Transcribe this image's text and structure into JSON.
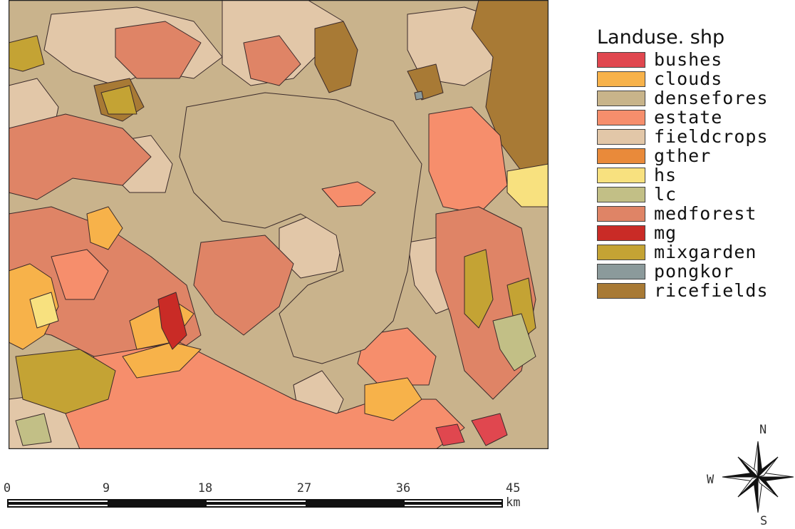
{
  "legend": {
    "title": "Landuse. shp",
    "items": [
      {
        "label": "bushes",
        "color": "#e0474f"
      },
      {
        "label": "clouds",
        "color": "#f7b24a"
      },
      {
        "label": "densefores",
        "color": "#c8b48a"
      },
      {
        "label": "estate",
        "color": "#f68e6c"
      },
      {
        "label": "fieldcrops",
        "color": "#e2c7a8"
      },
      {
        "label": "gther",
        "color": "#e98a3a"
      },
      {
        "label": "hs",
        "color": "#f8e17f"
      },
      {
        "label": "lc",
        "color": "#c2bf86"
      },
      {
        "label": "medforest",
        "color": "#df8466"
      },
      {
        "label": "mg",
        "color": "#c92b26"
      },
      {
        "label": "mixgarden",
        "color": "#c4a334"
      },
      {
        "label": "pongkor",
        "color": "#8b9a9b"
      },
      {
        "label": "ricefields",
        "color": "#a87a35"
      }
    ]
  },
  "scale": {
    "labels": [
      "0",
      "9",
      "18",
      "27",
      "36",
      "45 km"
    ]
  },
  "compass": {
    "n": "N",
    "s": "S",
    "w": "W"
  },
  "colors": {
    "background": "#c9b38c",
    "outline": "#3a2a2a"
  }
}
